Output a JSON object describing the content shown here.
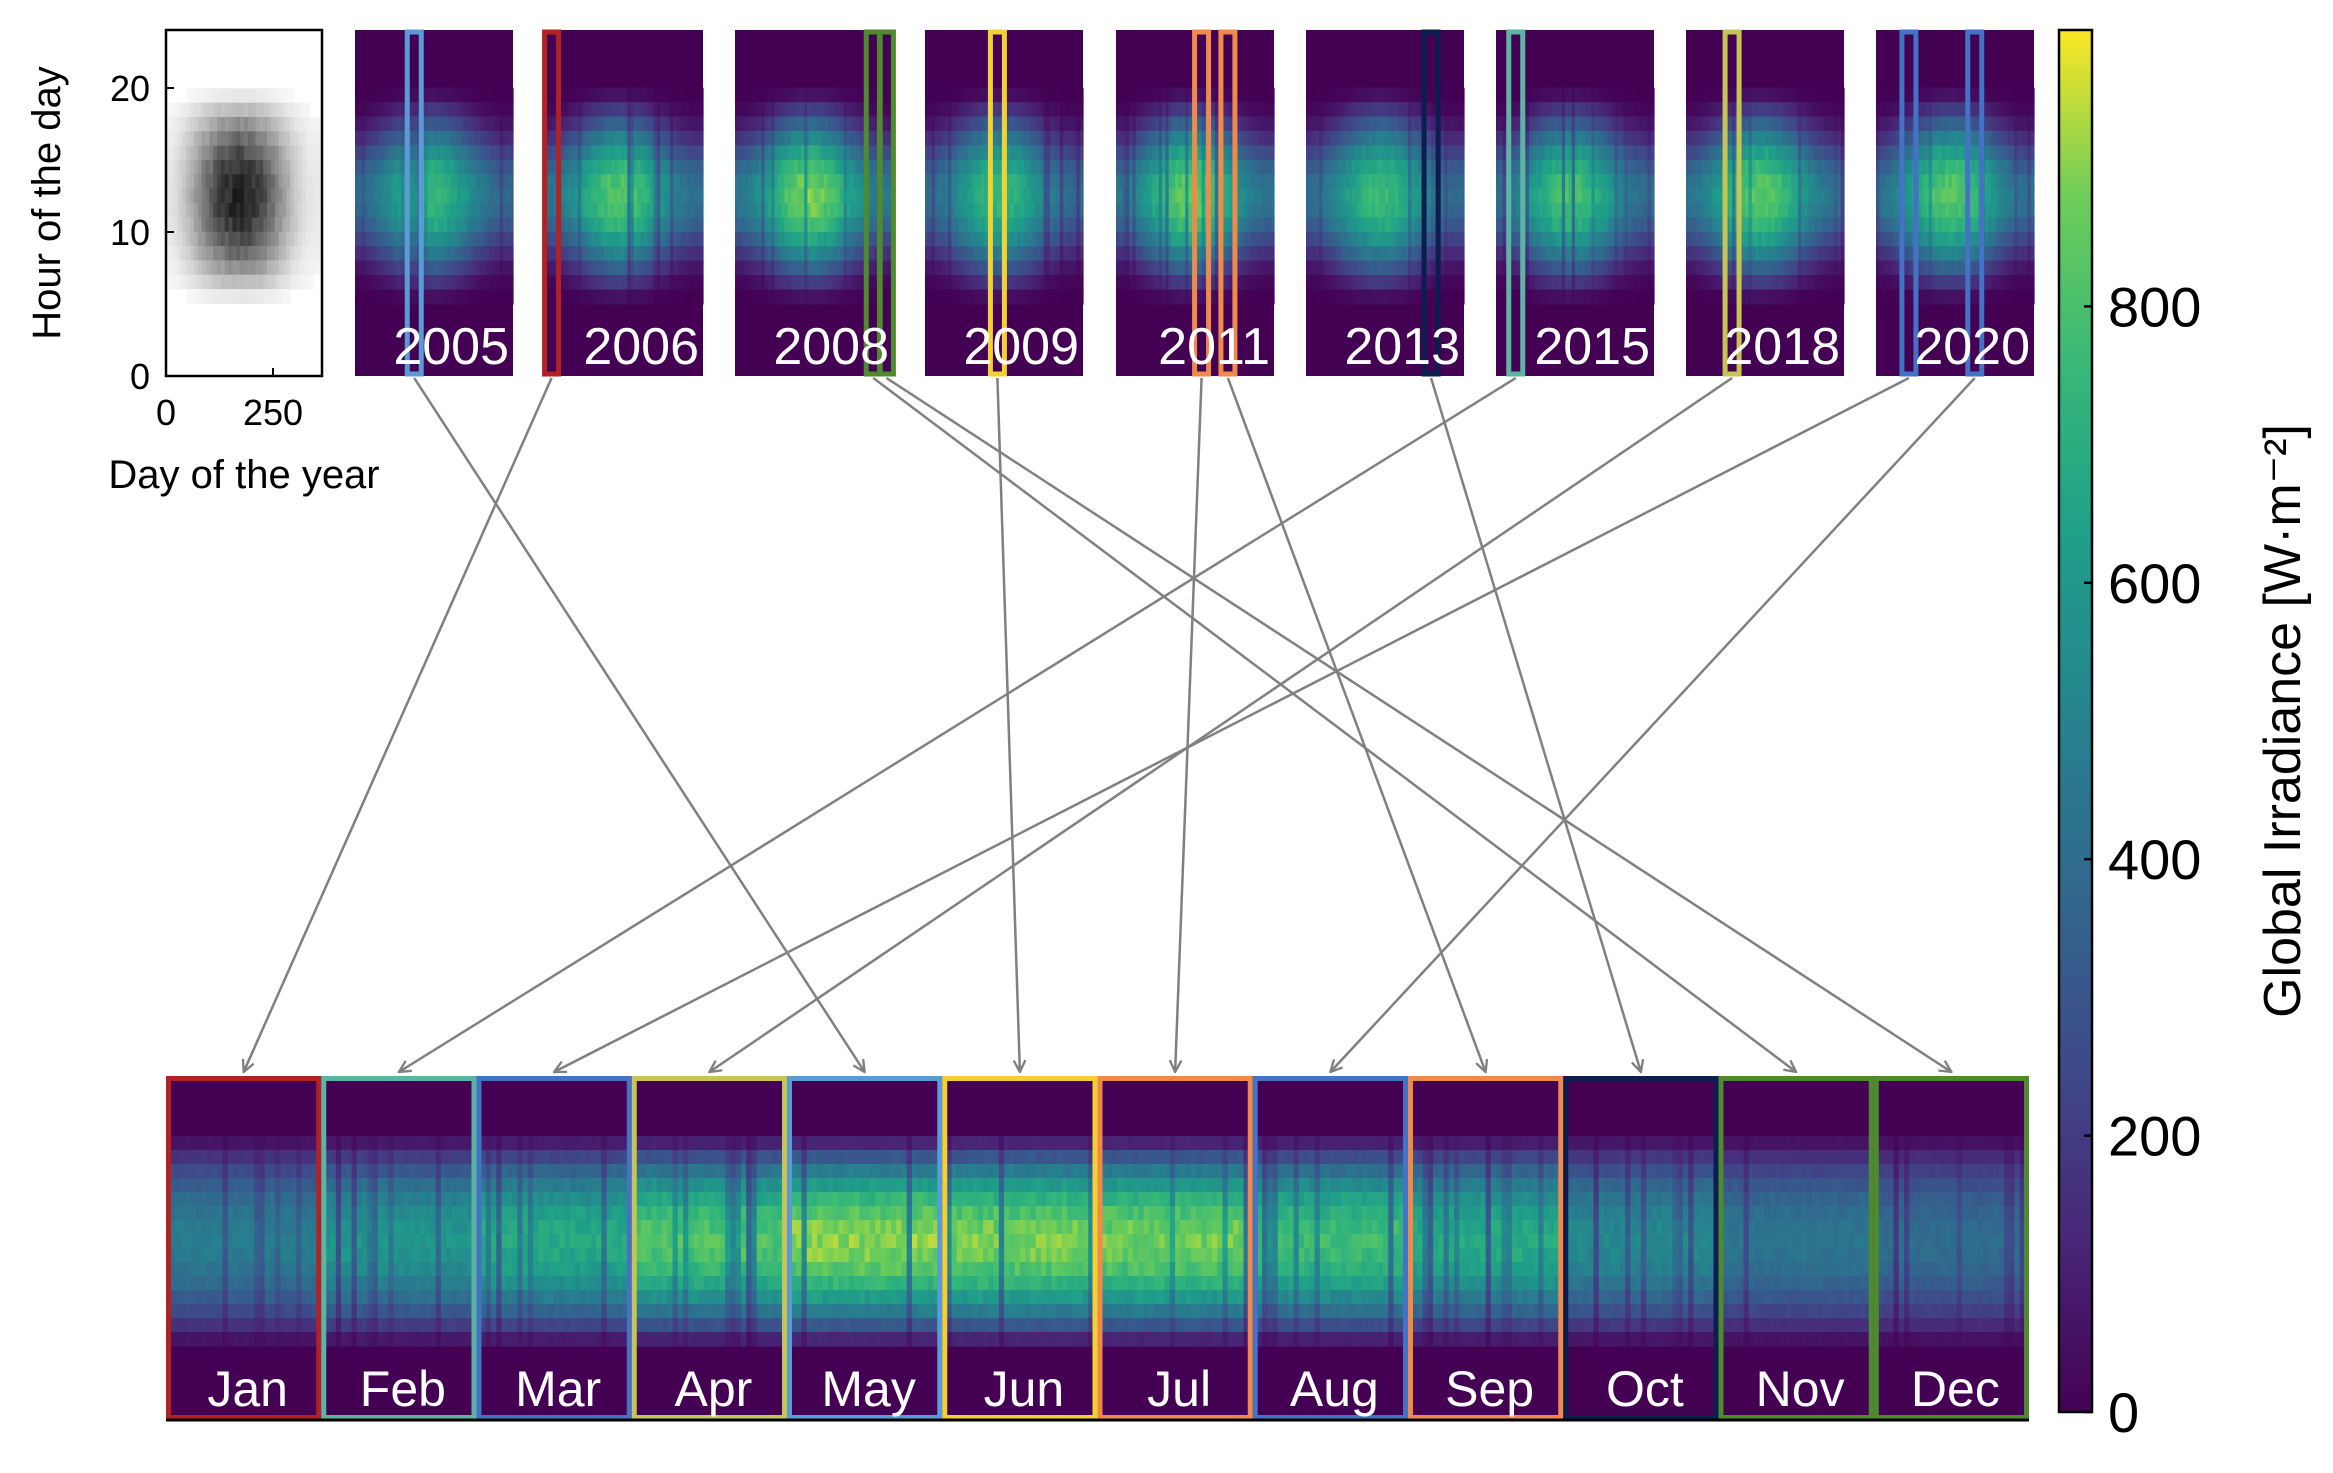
{
  "chart_data": [
    {
      "type": "heatmap",
      "title": "",
      "xlabel": "Day of the year",
      "ylabel": "Hour of the day",
      "xlim": [
        0,
        365
      ],
      "ylim": [
        0,
        24
      ],
      "x_ticks": [
        "0",
        "250"
      ],
      "y_ticks": [
        "0",
        "10",
        "20"
      ],
      "colormap": "greys"
    },
    {
      "type": "heatmap",
      "title": "",
      "panels": [
        "2005",
        "2006",
        "2008",
        "2009",
        "2011",
        "2013",
        "2015",
        "2018",
        "2020"
      ],
      "colormap": "viridis",
      "note_highlights": [
        {
          "year": "2005",
          "months": [
            "May"
          ],
          "colors": [
            "#5B9BD5"
          ]
        },
        {
          "year": "2006",
          "months": [
            "Jan"
          ],
          "colors": [
            "#B22222"
          ]
        },
        {
          "year": "2008",
          "months": [
            "Nov",
            "Dec"
          ],
          "colors": [
            "#4E8A2E"
          ]
        },
        {
          "year": "2009",
          "months": [
            "Jun"
          ],
          "colors": [
            "#F2D233"
          ]
        },
        {
          "year": "2011",
          "months": [
            "Jul",
            "Sep"
          ],
          "colors": [
            "#F08A4B"
          ]
        },
        {
          "year": "2013",
          "months": [
            "Oct"
          ],
          "colors": [
            "#0B1E4F"
          ]
        },
        {
          "year": "2015",
          "months": [
            "Feb"
          ],
          "colors": [
            "#5BB5A2"
          ]
        },
        {
          "year": "2018",
          "months": [
            "Apr"
          ],
          "colors": [
            "#C5C556"
          ]
        },
        {
          "year": "2020",
          "months": [
            "Mar",
            "Aug"
          ],
          "colors": [
            "#4472C4"
          ]
        }
      ]
    },
    {
      "type": "heatmap",
      "title": "",
      "panels": [
        "Jan",
        "Feb",
        "Mar",
        "Apr",
        "May",
        "Jun",
        "Jul",
        "Aug",
        "Sep",
        "Oct",
        "Nov",
        "Dec"
      ],
      "frame_colors": [
        "#B22222",
        "#5BB5A2",
        "#4472C4",
        "#C5C556",
        "#5B9BD5",
        "#F2D233",
        "#F08A4B",
        "#4472C4",
        "#F08A4B",
        "#0B1E4F",
        "#4E8A2E",
        "#4E8A2E"
      ],
      "peak_intensity": [
        0.5,
        0.62,
        0.72,
        0.86,
        0.95,
        0.93,
        0.92,
        0.82,
        0.72,
        0.56,
        0.46,
        0.42
      ],
      "colorbar": {
        "label": "Global Irradiance [W·m⁻²]",
        "range": [
          0,
          1000
        ],
        "ticks": [
          "0",
          "200",
          "400",
          "600",
          "800"
        ]
      }
    }
  ]
}
